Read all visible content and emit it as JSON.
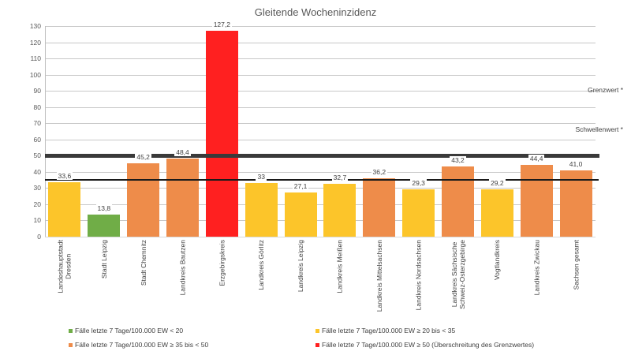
{
  "chart_data": {
    "type": "bar",
    "title": "Gleitende Wocheninzidenz",
    "xlabel": "",
    "ylabel": "",
    "ylim": [
      0,
      130
    ],
    "yticks": [
      0,
      10,
      20,
      30,
      40,
      50,
      60,
      70,
      80,
      90,
      100,
      110,
      120,
      130
    ],
    "grid": true,
    "categories": [
      "Landeshauptstadt\nDresden",
      "Stadt Leipzig",
      "Stadt Chemnitz",
      "Landkreis Bautzen",
      "Erzgebirgskreis",
      "Landkreis Görlitz",
      "Landkreis Leipzig",
      "Landkreis Meißen",
      "Landkreis Mittelsachsen",
      "Landkreis Nordsachsen",
      "Landkreis Sächsische\nSchweiz-Osterzgebirge",
      "Vogtlandkreis",
      "Landkreis Zwickau",
      "Sachsen gesamt"
    ],
    "values": [
      33.6,
      13.8,
      45.2,
      48.4,
      127.2,
      33,
      27.1,
      32.7,
      36.2,
      29.3,
      43.2,
      29.2,
      44.4,
      41.0
    ],
    "value_labels": [
      "33,6",
      "13,8",
      "45,2",
      "48,4",
      "127,2",
      "33",
      "27,1",
      "32,7",
      "36,2",
      "29,3",
      "43,2",
      "29,2",
      "44,4",
      "41,0"
    ],
    "bar_colors": [
      "#fcc52a",
      "#70ad47",
      "#ee8c4a",
      "#ee8c4a",
      "#ff2020",
      "#fcc52a",
      "#fcc52a",
      "#fcc52a",
      "#ee8c4a",
      "#fcc52a",
      "#ee8c4a",
      "#fcc52a",
      "#ee8c4a",
      "#ee8c4a"
    ],
    "reference_lines": [
      {
        "name": "Grenzwert *",
        "value": 50,
        "style": "thick"
      },
      {
        "name": "Schwellenwert *",
        "value": 35,
        "style": "thin"
      }
    ],
    "legend_position": "bottom",
    "legend": [
      {
        "label": "Fälle letzte 7 Tage/100.000 EW < 20",
        "color": "#70ad47"
      },
      {
        "label": "Fälle letzte 7 Tage/100.000 EW ≥ 20 bis < 35",
        "color": "#fcc52a"
      },
      {
        "label": "Fälle letzte 7 Tage/100.000 EW ≥ 35 bis < 50",
        "color": "#ee8c4a"
      },
      {
        "label": "Fälle letzte 7 Tage/100.000 EW ≥ 50 (Überschreitung des Grenzwertes)",
        "color": "#ff2020"
      }
    ]
  }
}
